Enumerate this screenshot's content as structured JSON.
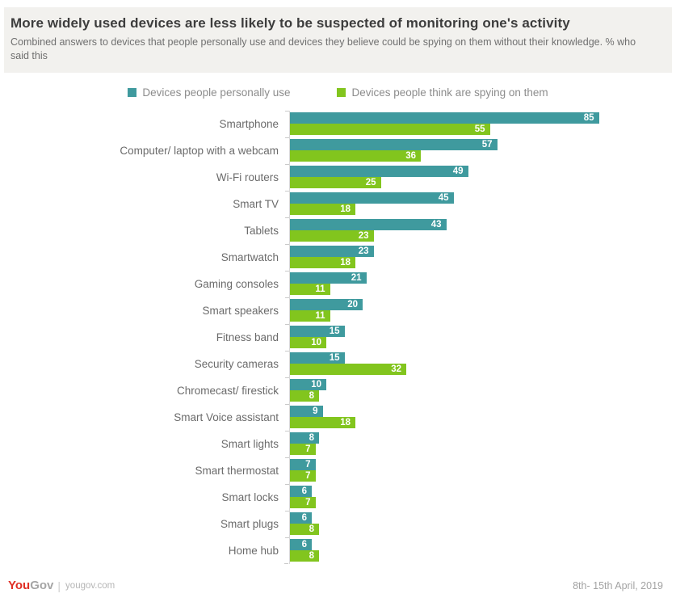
{
  "header": {
    "title": "More widely used devices are less likely to be suspected of monitoring one's activity",
    "subtitle": "Combined answers to devices that people personally use and devices they believe could be spying on them without their knowledge. % who said this"
  },
  "legend": {
    "series1_label": "Devices people personally use",
    "series2_label": "Devices people think are spying on them"
  },
  "colors": {
    "teal": "#3f9a9e",
    "green": "#82c51e",
    "header_bg": "#f2f1ee",
    "logo_red": "#e02e24"
  },
  "chart_data": {
    "type": "bar",
    "orientation": "horizontal",
    "title": "More widely used devices are less likely to be suspected of monitoring one's activity",
    "xlabel": "% who said this",
    "ylabel": "",
    "xlim": [
      0,
      100
    ],
    "grid": false,
    "legend_position": "top",
    "value_labels": "inside-end",
    "categories": [
      "Smartphone",
      "Computer/ laptop with a webcam",
      "Wi-Fi routers",
      "Smart TV",
      "Tablets",
      "Smartwatch",
      "Gaming consoles",
      "Smart speakers",
      "Fitness band",
      "Security cameras",
      "Chromecast/ firestick",
      "Smart Voice assistant",
      "Smart lights",
      "Smart thermostat",
      "Smart locks",
      "Smart plugs",
      "Home hub"
    ],
    "series": [
      {
        "name": "Devices people personally use",
        "color": "#3f9a9e",
        "values": [
          85,
          57,
          49,
          45,
          43,
          23,
          21,
          20,
          15,
          15,
          10,
          9,
          8,
          7,
          6,
          6,
          6
        ]
      },
      {
        "name": "Devices people think are spying on them",
        "color": "#82c51e",
        "values": [
          55,
          36,
          25,
          18,
          23,
          18,
          11,
          11,
          10,
          32,
          8,
          18,
          7,
          7,
          7,
          8,
          8
        ]
      }
    ]
  },
  "footer": {
    "logo_part1": "You",
    "logo_part2": "Gov",
    "logo_divider": "|",
    "site": "yougov.com",
    "date": "8th- 15th April, 2019"
  }
}
